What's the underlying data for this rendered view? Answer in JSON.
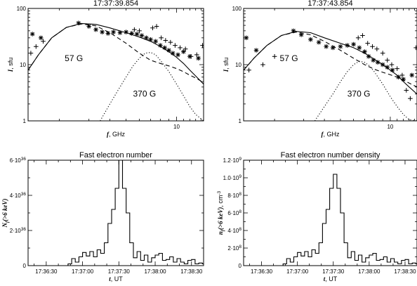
{
  "chart_data": [
    {
      "type": "scatter",
      "title": "17:37:39.854",
      "xlabel_var": "f",
      "xlabel_unit": ", GHz",
      "ylabel_var": "I",
      "ylabel_unit": ", sfu",
      "x_scale": "log",
      "y_scale": "log",
      "xlim": [
        1.3,
        14.5
      ],
      "ylim": [
        1,
        100
      ],
      "xticks": [
        {
          "v": 10,
          "label": "10"
        }
      ],
      "yticks": [
        {
          "v": 1,
          "label": "1"
        },
        {
          "v": 10,
          "label": "10"
        },
        {
          "v": 100,
          "label": "100"
        }
      ],
      "annotations": [
        {
          "text": "57 G",
          "x": 2.15,
          "y": 11.5
        },
        {
          "text": "370 G",
          "x": 5.5,
          "y": 2.7
        }
      ],
      "series": [
        {
          "style": "solid",
          "x": [
            1.3,
            1.5,
            1.8,
            2.2,
            2.7,
            3.3,
            4,
            5,
            6,
            7,
            8,
            9,
            10,
            11,
            12,
            13,
            14.5
          ],
          "y": [
            8,
            15,
            30,
            46,
            54,
            52,
            45,
            37,
            31,
            26,
            21,
            17,
            13.5,
            10.5,
            8,
            6.3,
            4.5
          ]
        },
        {
          "style": "dashed",
          "x": [
            1.3,
            1.5,
            1.8,
            2.2,
            2.7,
            3.3,
            4,
            5,
            6,
            7,
            8,
            9,
            10,
            11,
            12,
            13,
            14.5
          ],
          "y": [
            8,
            15,
            30,
            46,
            53,
            49,
            37,
            24,
            16,
            12,
            10.5,
            9.5,
            8.5,
            7.5,
            6.5,
            5.8,
            4.8
          ]
        },
        {
          "style": "dotted",
          "x": [
            3.5,
            4,
            4.5,
            5,
            5.5,
            6,
            6.5,
            7,
            7.5,
            8,
            9,
            10,
            11,
            12,
            13,
            14.5
          ],
          "y": [
            1,
            2,
            3.6,
            6,
            9.5,
            13,
            16,
            16.5,
            15,
            12,
            7.5,
            4.5,
            2.8,
            1.8,
            1.3,
            1
          ]
        },
        {
          "marker": "asterisk",
          "x": [
            1.38,
            1.55,
            2.6,
            3.0,
            3.3,
            3.6,
            3.9,
            4.2,
            4.6,
            5.0,
            5.4,
            5.8,
            6.2,
            6.6,
            7.0,
            7.5,
            8.0,
            8.5,
            9.0,
            9.5,
            10.2,
            11,
            12,
            13.5
          ],
          "y": [
            35,
            30,
            55,
            48,
            42,
            38,
            36,
            38,
            37,
            38,
            36,
            35,
            33,
            30,
            28,
            26,
            22,
            20,
            18,
            16,
            15,
            17,
            14,
            13
          ]
        },
        {
          "marker": "plus",
          "x": [
            1.35,
            1.45,
            1.6,
            5.6,
            6.0,
            7.2,
            7.6,
            8.1,
            8.6,
            9.2,
            9.8,
            10.5,
            11.3,
            12.2,
            13.2,
            14.3
          ],
          "y": [
            16,
            21,
            26,
            42,
            40,
            45,
            48,
            30,
            27,
            25,
            22,
            20,
            19,
            14,
            15,
            22
          ]
        }
      ]
    },
    {
      "type": "scatter",
      "title": "17:37:43.854",
      "xlabel_var": "f",
      "xlabel_unit": ", GHz",
      "ylabel_var": "I",
      "ylabel_unit": ", sfu",
      "x_scale": "log",
      "y_scale": "log",
      "xlim": [
        1.3,
        14.5
      ],
      "ylim": [
        1,
        100
      ],
      "xticks": [
        {
          "v": 10,
          "label": "10"
        }
      ],
      "yticks": [
        {
          "v": 1,
          "label": "1"
        },
        {
          "v": 10,
          "label": "10"
        },
        {
          "v": 100,
          "label": "100"
        }
      ],
      "annotations": [
        {
          "text": "57 G",
          "x": 2.15,
          "y": 11.5
        },
        {
          "text": "370 G",
          "x": 5.5,
          "y": 2.7
        }
      ],
      "series": [
        {
          "style": "solid",
          "x": [
            1.3,
            1.5,
            1.8,
            2.2,
            2.7,
            3.3,
            4,
            5,
            6,
            7,
            8,
            9,
            10,
            11,
            12,
            13,
            14.5
          ],
          "y": [
            8,
            13,
            22,
            33,
            39,
            37,
            30,
            24,
            20,
            16,
            12.5,
            10,
            8,
            6.5,
            5,
            4,
            3
          ]
        },
        {
          "style": "dashed",
          "x": [
            1.3,
            1.5,
            1.8,
            2.2,
            2.7,
            3.3,
            4,
            5,
            6,
            7,
            8,
            9,
            10,
            11,
            12,
            13,
            14.5
          ],
          "y": [
            8,
            13,
            22,
            33,
            38,
            34,
            26,
            18,
            13,
            10,
            8.3,
            7.3,
            6.6,
            6,
            5.3,
            4.7,
            4
          ]
        },
        {
          "style": "dotted",
          "x": [
            3.5,
            4,
            4.5,
            5,
            5.5,
            6,
            6.5,
            7,
            7.5,
            8,
            9,
            10,
            11,
            12,
            13,
            14.5
          ],
          "y": [
            1,
            1.8,
            3,
            5,
            7.5,
            10,
            11.5,
            11,
            9.5,
            7.5,
            4.5,
            2.7,
            1.8,
            1.3,
            1.05,
            1
          ]
        },
        {
          "marker": "asterisk",
          "x": [
            1.35,
            1.55,
            2.6,
            2.9,
            3.3,
            3.7,
            4.1,
            4.5,
            5.0,
            5.5,
            6.0,
            6.5,
            7.0,
            7.4,
            7.9,
            8.4,
            9.0,
            9.6,
            10.3,
            11.2,
            12,
            13.5
          ],
          "y": [
            30,
            18,
            40,
            34,
            28,
            25,
            21,
            20,
            21,
            22,
            23,
            20,
            17,
            14,
            12,
            11,
            10,
            9,
            8,
            6,
            5.5,
            6.5
          ]
        },
        {
          "marker": "plus",
          "x": [
            1.4,
            1.7,
            2.0,
            6.4,
            6.8,
            7.3,
            7.8,
            8.3,
            9.0,
            9.6,
            10.2,
            11,
            11.8,
            12.5,
            13.2,
            14.3
          ],
          "y": [
            8,
            10,
            14,
            30,
            33,
            24,
            21,
            19,
            16,
            12,
            10,
            8.5,
            6.5,
            3.5,
            2.5,
            20
          ]
        }
      ]
    },
    {
      "type": "line",
      "step": true,
      "title": "Fast electron number",
      "xlabel_var": "t",
      "xlabel_unit": ", UT",
      "ylabel_main": "N",
      "ylabel_sub": "f",
      "ylabel_paren": "(>6 keV)",
      "x_unit": "seconds_after_17:36:00",
      "xlim": [
        15,
        160
      ],
      "ylim": [
        0,
        6
      ],
      "y_multiplier_text": "10",
      "y_multiplier_exp": "36",
      "xticks": [
        {
          "v": 30,
          "label": "17:36:30"
        },
        {
          "v": 60,
          "label": "17:37:00"
        },
        {
          "v": 90,
          "label": "17:37:30"
        },
        {
          "v": 120,
          "label": "17:38:00"
        },
        {
          "v": 150,
          "label": "17:38:30"
        }
      ],
      "yticks": [
        {
          "v": 0,
          "mant": "0",
          "exp": ""
        },
        {
          "v": 2,
          "mant": "2·",
          "exp": "36"
        },
        {
          "v": 4,
          "mant": "4·",
          "exp": "36"
        },
        {
          "v": 6,
          "mant": "6·",
          "exp": "36"
        }
      ],
      "x": [
        17,
        45,
        48,
        51,
        54,
        57,
        60,
        63,
        66,
        69,
        72,
        75,
        78,
        81,
        84,
        87,
        90,
        93,
        96,
        99,
        102,
        105,
        108,
        111,
        114,
        117,
        120,
        123,
        126,
        129,
        132,
        135,
        138,
        141,
        144,
        147,
        150,
        153,
        156,
        159
      ],
      "y": [
        0,
        0,
        0.1,
        0.4,
        0.2,
        0.5,
        0.75,
        0.55,
        0.8,
        0.5,
        0.9,
        0.7,
        1.3,
        2.4,
        3.2,
        4.4,
        6.1,
        4.4,
        3.0,
        1.3,
        0.45,
        0.8,
        0.3,
        0.6,
        0.2,
        0.45,
        0.6,
        0.7,
        0.3,
        0.35,
        0.5,
        0.2,
        0.4,
        0.2,
        0.1,
        0.3,
        0.35,
        0.1,
        0.15,
        0.1
      ]
    },
    {
      "type": "line",
      "step": true,
      "title": "Fast electron number density",
      "xlabel_var": "t",
      "xlabel_unit": ", UT",
      "ylabel_main": "n",
      "ylabel_sub": "f",
      "ylabel_paren": "(>6 keV)",
      "ylabel_unit": ", cm",
      "ylabel_unit_exp": "-3",
      "x_unit": "seconds_after_17:36:00",
      "xlim": [
        15,
        160
      ],
      "ylim": [
        0,
        1.2
      ],
      "xticks": [
        {
          "v": 30,
          "label": "17:36:30"
        },
        {
          "v": 60,
          "label": "17:37:00"
        },
        {
          "v": 90,
          "label": "17:37:30"
        },
        {
          "v": 120,
          "label": "17:38:00"
        },
        {
          "v": 150,
          "label": "17:38:30"
        }
      ],
      "yticks": [
        {
          "v": 0,
          "mant": "0",
          "exp": ""
        },
        {
          "v": 0.2,
          "mant": "2·",
          "exp": "8"
        },
        {
          "v": 0.4,
          "mant": "4·",
          "exp": "8"
        },
        {
          "v": 0.6,
          "mant": "6·",
          "exp": "8"
        },
        {
          "v": 0.8,
          "mant": "8·",
          "exp": "8"
        },
        {
          "v": 1.0,
          "mant": "1.0·",
          "exp": "9"
        },
        {
          "v": 1.2,
          "mant": "1.2·",
          "exp": "9"
        }
      ],
      "x": [
        17,
        45,
        48,
        51,
        54,
        57,
        60,
        63,
        66,
        69,
        72,
        75,
        78,
        81,
        84,
        87,
        90,
        93,
        96,
        99,
        102,
        105,
        108,
        111,
        114,
        117,
        120,
        123,
        126,
        129,
        132,
        135,
        138,
        141,
        144,
        147,
        150,
        153,
        156,
        159
      ],
      "y": [
        0,
        0,
        0.02,
        0.08,
        0.04,
        0.1,
        0.15,
        0.11,
        0.16,
        0.1,
        0.18,
        0.14,
        0.26,
        0.48,
        0.64,
        0.88,
        1.04,
        0.88,
        0.6,
        0.26,
        0.09,
        0.16,
        0.06,
        0.12,
        0.04,
        0.09,
        0.12,
        0.14,
        0.06,
        0.07,
        0.1,
        0.04,
        0.08,
        0.04,
        0.02,
        0.06,
        0.07,
        0.02,
        0.03,
        0.02
      ]
    }
  ]
}
